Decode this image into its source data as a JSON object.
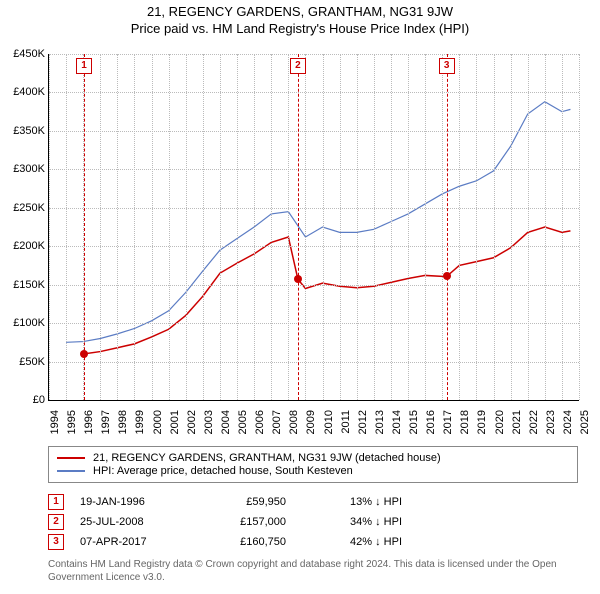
{
  "title": "21, REGENCY GARDENS, GRANTHAM, NG31 9JW",
  "subtitle": "Price paid vs. HM Land Registry's House Price Index (HPI)",
  "chart": {
    "type": "line",
    "background_color": "#ffffff",
    "grid_color": "#bbbbbb",
    "xlim": [
      1994,
      2025
    ],
    "ylim": [
      0,
      450000
    ],
    "ytick_step": 50000,
    "yticks": [
      "£0",
      "£50K",
      "£100K",
      "£150K",
      "£200K",
      "£250K",
      "£300K",
      "£350K",
      "£400K",
      "£450K"
    ],
    "xticks": [
      "1994",
      "1995",
      "1996",
      "1997",
      "1998",
      "1999",
      "2000",
      "2001",
      "2002",
      "2003",
      "2004",
      "2005",
      "2006",
      "2007",
      "2008",
      "2009",
      "2010",
      "2011",
      "2012",
      "2013",
      "2014",
      "2015",
      "2016",
      "2017",
      "2018",
      "2019",
      "2020",
      "2021",
      "2022",
      "2023",
      "2024",
      "2025"
    ],
    "series": [
      {
        "name": "21, REGENCY GARDENS, GRANTHAM, NG31 9JW (detached house)",
        "color": "#cc0000",
        "width": 1.5,
        "points": [
          [
            1996.05,
            59950
          ],
          [
            1997.0,
            63000
          ],
          [
            1998.0,
            68000
          ],
          [
            1999.0,
            73000
          ],
          [
            2000.0,
            82000
          ],
          [
            2001.0,
            92000
          ],
          [
            2002.0,
            110000
          ],
          [
            2003.0,
            135000
          ],
          [
            2004.0,
            165000
          ],
          [
            2005.0,
            178000
          ],
          [
            2006.0,
            190000
          ],
          [
            2007.0,
            205000
          ],
          [
            2008.0,
            212000
          ],
          [
            2008.56,
            157000
          ],
          [
            2009.0,
            145000
          ],
          [
            2010.0,
            152000
          ],
          [
            2011.0,
            148000
          ],
          [
            2012.0,
            146000
          ],
          [
            2013.0,
            148000
          ],
          [
            2014.0,
            153000
          ],
          [
            2015.0,
            158000
          ],
          [
            2016.0,
            162000
          ],
          [
            2017.0,
            160750
          ],
          [
            2017.26,
            160750
          ],
          [
            2018.0,
            175000
          ],
          [
            2019.0,
            180000
          ],
          [
            2020.0,
            185000
          ],
          [
            2021.0,
            198000
          ],
          [
            2022.0,
            218000
          ],
          [
            2023.0,
            225000
          ],
          [
            2024.0,
            218000
          ],
          [
            2024.5,
            220000
          ]
        ]
      },
      {
        "name": "HPI: Average price, detached house, South Kesteven",
        "color": "#5b7cc4",
        "width": 1.2,
        "points": [
          [
            1995.0,
            75000
          ],
          [
            1996.0,
            76000
          ],
          [
            1997.0,
            80000
          ],
          [
            1998.0,
            86000
          ],
          [
            1999.0,
            93000
          ],
          [
            2000.0,
            103000
          ],
          [
            2001.0,
            116000
          ],
          [
            2002.0,
            140000
          ],
          [
            2003.0,
            168000
          ],
          [
            2004.0,
            195000
          ],
          [
            2005.0,
            210000
          ],
          [
            2006.0,
            225000
          ],
          [
            2007.0,
            242000
          ],
          [
            2008.0,
            245000
          ],
          [
            2009.0,
            212000
          ],
          [
            2010.0,
            225000
          ],
          [
            2011.0,
            218000
          ],
          [
            2012.0,
            218000
          ],
          [
            2013.0,
            222000
          ],
          [
            2014.0,
            232000
          ],
          [
            2015.0,
            242000
          ],
          [
            2016.0,
            255000
          ],
          [
            2017.0,
            268000
          ],
          [
            2018.0,
            278000
          ],
          [
            2019.0,
            285000
          ],
          [
            2020.0,
            298000
          ],
          [
            2021.0,
            330000
          ],
          [
            2022.0,
            372000
          ],
          [
            2023.0,
            388000
          ],
          [
            2024.0,
            375000
          ],
          [
            2024.5,
            378000
          ]
        ]
      }
    ],
    "events": [
      {
        "n": "1",
        "year": 1996.05,
        "price": 59950,
        "date": "19-JAN-1996",
        "price_label": "£59,950",
        "pct": "13% ↓ HPI"
      },
      {
        "n": "2",
        "year": 2008.56,
        "price": 157000,
        "date": "25-JUL-2008",
        "price_label": "£157,000",
        "pct": "34% ↓ HPI"
      },
      {
        "n": "3",
        "year": 2017.26,
        "price": 160750,
        "date": "07-APR-2017",
        "price_label": "£160,750",
        "pct": "42% ↓ HPI"
      }
    ]
  },
  "legend": {
    "label1": "21, REGENCY GARDENS, GRANTHAM, NG31 9JW (detached house)",
    "label2": "HPI: Average price, detached house, South Kesteven",
    "color1": "#cc0000",
    "color2": "#5b7cc4"
  },
  "copyright": "Contains HM Land Registry data © Crown copyright and database right 2024. This data is licensed under the Open Government Licence v3.0."
}
